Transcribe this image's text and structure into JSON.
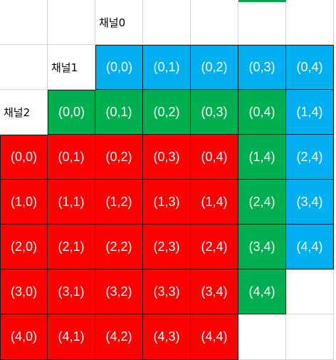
{
  "labels": {
    "channel0": "채널0",
    "channel1": "채널1",
    "channel2": "채널2"
  },
  "colors": {
    "channel0": "#00b0f0",
    "channel1": "#00b050",
    "channel2": "#ff0000",
    "gridline": "#d4d4d4",
    "cell_border": "#1a1a1a"
  },
  "grid": [
    [
      null,
      null,
      {
        "t": "label",
        "k": "channel0"
      },
      null,
      null,
      null,
      null
    ],
    [
      null,
      {
        "t": "label",
        "k": "channel1"
      },
      {
        "t": "data",
        "c": "channel0",
        "v": "(0,0)"
      },
      {
        "t": "data",
        "c": "channel0",
        "v": "(0,1)"
      },
      {
        "t": "data",
        "c": "channel0",
        "v": "(0,2)"
      },
      {
        "t": "data",
        "c": "channel0",
        "v": "(0,3)"
      },
      {
        "t": "data",
        "c": "channel0",
        "v": "(0,4)"
      }
    ],
    [
      {
        "t": "label",
        "k": "channel2"
      },
      {
        "t": "data",
        "c": "channel1",
        "v": "(0,0)"
      },
      {
        "t": "data",
        "c": "channel1",
        "v": "(0,1)"
      },
      {
        "t": "data",
        "c": "channel1",
        "v": "(0,2)"
      },
      {
        "t": "data",
        "c": "channel1",
        "v": "(0,3)"
      },
      {
        "t": "data",
        "c": "channel1",
        "v": "(0,4)"
      },
      {
        "t": "data",
        "c": "channel0",
        "v": "(1,4)"
      }
    ],
    [
      {
        "t": "data",
        "c": "channel2",
        "v": "(0,0)"
      },
      {
        "t": "data",
        "c": "channel2",
        "v": "(0,1)"
      },
      {
        "t": "data",
        "c": "channel2",
        "v": "(0,2)"
      },
      {
        "t": "data",
        "c": "channel2",
        "v": "(0,3)"
      },
      {
        "t": "data",
        "c": "channel2",
        "v": "(0,4)"
      },
      {
        "t": "data",
        "c": "channel1",
        "v": "(1,4)"
      },
      {
        "t": "data",
        "c": "channel0",
        "v": "(2,4)"
      }
    ],
    [
      {
        "t": "data",
        "c": "channel2",
        "v": "(1,0)"
      },
      {
        "t": "data",
        "c": "channel2",
        "v": "(1,1)"
      },
      {
        "t": "data",
        "c": "channel2",
        "v": "(1,2)"
      },
      {
        "t": "data",
        "c": "channel2",
        "v": "(1,3)"
      },
      {
        "t": "data",
        "c": "channel2",
        "v": "(1,4)"
      },
      {
        "t": "data",
        "c": "channel1",
        "v": "(2,4)"
      },
      {
        "t": "data",
        "c": "channel0",
        "v": "(3,4)"
      }
    ],
    [
      {
        "t": "data",
        "c": "channel2",
        "v": "(2,0)"
      },
      {
        "t": "data",
        "c": "channel2",
        "v": "(2,1)"
      },
      {
        "t": "data",
        "c": "channel2",
        "v": "(2,2)"
      },
      {
        "t": "data",
        "c": "channel2",
        "v": "(2,3)"
      },
      {
        "t": "data",
        "c": "channel2",
        "v": "(2,4)"
      },
      {
        "t": "data",
        "c": "channel1",
        "v": "(3,4)"
      },
      {
        "t": "data",
        "c": "channel0",
        "v": "(4,4)"
      }
    ],
    [
      {
        "t": "data",
        "c": "channel2",
        "v": "(3,0)"
      },
      {
        "t": "data",
        "c": "channel2",
        "v": "(3,1)"
      },
      {
        "t": "data",
        "c": "channel2",
        "v": "(3,2)"
      },
      {
        "t": "data",
        "c": "channel2",
        "v": "(3,3)"
      },
      {
        "t": "data",
        "c": "channel2",
        "v": "(3,4)"
      },
      {
        "t": "data",
        "c": "channel1",
        "v": "(4,4)"
      },
      null
    ],
    [
      {
        "t": "data",
        "c": "channel2",
        "v": "(4,0)"
      },
      {
        "t": "data",
        "c": "channel2",
        "v": "(4,1)"
      },
      {
        "t": "data",
        "c": "channel2",
        "v": "(4,2)"
      },
      {
        "t": "data",
        "c": "channel2",
        "v": "(4,3)"
      },
      {
        "t": "data",
        "c": "channel2",
        "v": "(4,4)"
      },
      null,
      null
    ]
  ]
}
